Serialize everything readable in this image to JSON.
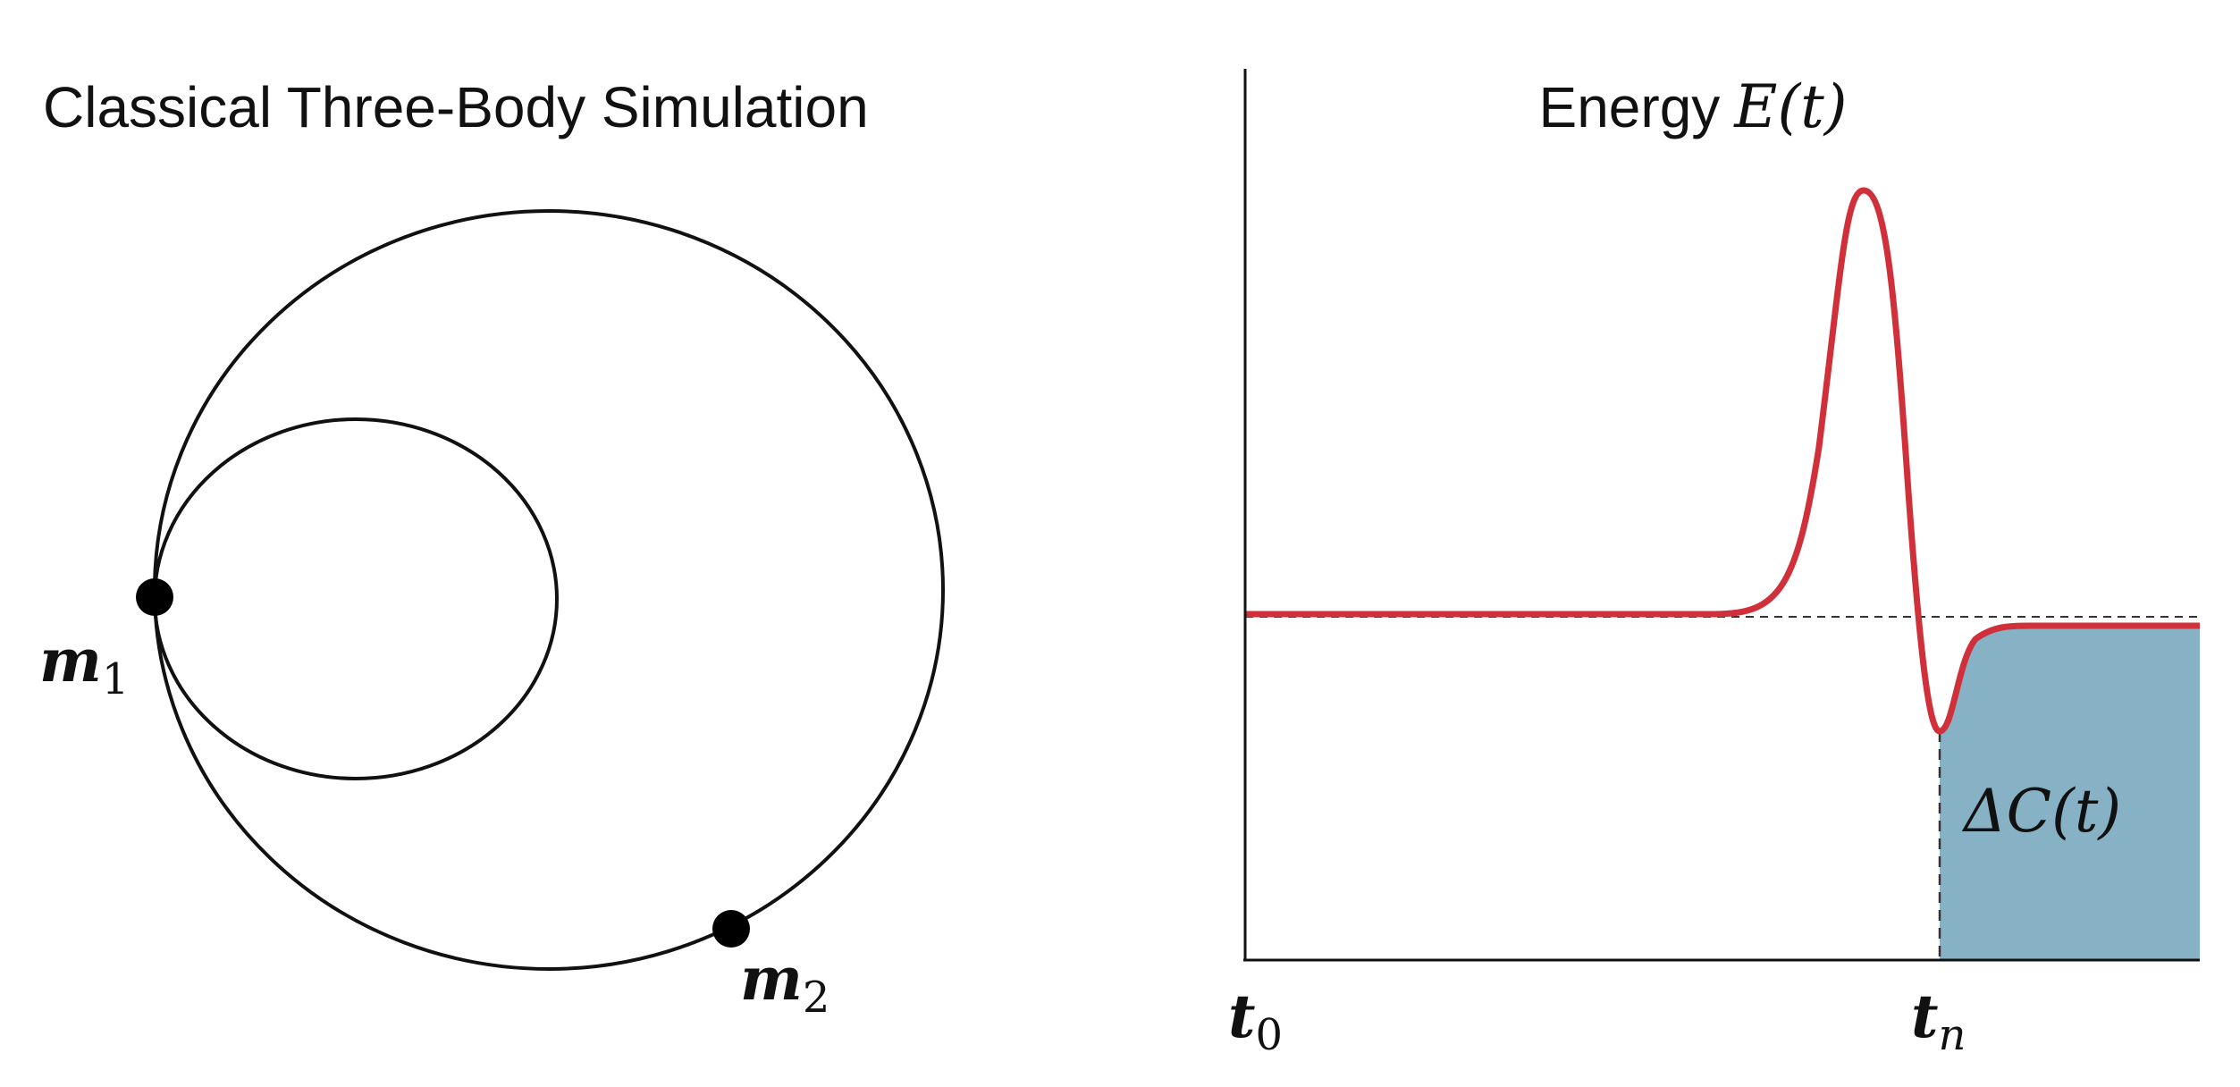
{
  "left_panel": {
    "title": "Classical Three-Body Simulation",
    "bodies": [
      {
        "symbol": "m",
        "subscript": "1"
      },
      {
        "symbol": "m",
        "subscript": "2"
      }
    ]
  },
  "right_panel": {
    "title": {
      "text": "Energy",
      "math": "E(t)"
    },
    "shaded_label": "ΔC(t)",
    "x_labels": [
      {
        "symbol": "t",
        "subscript": "0"
      },
      {
        "symbol": "t",
        "subscript": "n"
      }
    ]
  }
}
